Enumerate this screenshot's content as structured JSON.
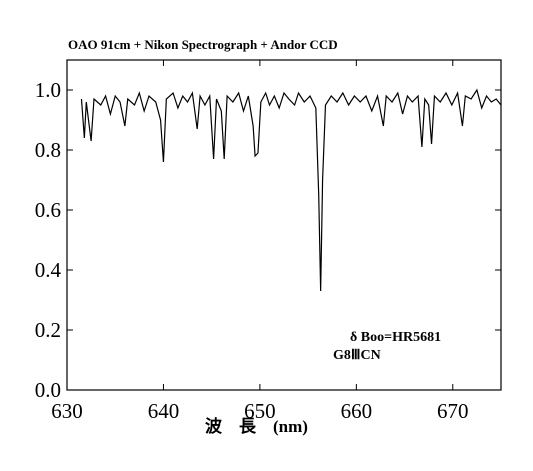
{
  "chart_data": {
    "type": "line",
    "title": "OAO 91cm + Nikon Spectrograph + Andor CCD",
    "x_label": "波　長　(nm)",
    "annotations": [
      "δ Boo=HR5681",
      "G8ⅢCN"
    ],
    "xlim": [
      630,
      675
    ],
    "ylim": [
      0,
      1.1
    ],
    "xticks": [
      630,
      640,
      650,
      660,
      670
    ],
    "yticks": [
      {
        "value": 0,
        "label": "0.0"
      },
      0.2,
      0.4,
      0.6,
      0.8,
      {
        "value": 1,
        "label": "1.0"
      }
    ],
    "color": "#000000",
    "x": [
      631.5,
      631.8,
      632.0,
      632.5,
      632.8,
      633.5,
      634.0,
      634.5,
      635.0,
      635.5,
      636.0,
      636.3,
      637.0,
      637.5,
      638.0,
      638.5,
      639.2,
      639.7,
      640.0,
      640.3,
      641.0,
      641.5,
      642.0,
      642.5,
      643.0,
      643.5,
      643.8,
      644.3,
      644.8,
      645.2,
      645.5,
      646.0,
      646.3,
      646.6,
      647.2,
      647.8,
      648.3,
      648.8,
      649.3,
      649.5,
      649.8,
      650.1,
      650.6,
      651.0,
      651.5,
      652.0,
      652.5,
      653.0,
      653.6,
      654.0,
      654.6,
      655.2,
      655.8,
      656.1,
      656.3,
      656.5,
      656.8,
      657.4,
      658.0,
      658.6,
      659.2,
      659.8,
      660.4,
      661.0,
      661.6,
      662.2,
      662.8,
      663.1,
      663.7,
      664.3,
      664.8,
      665.3,
      665.8,
      666.4,
      666.8,
      667.1,
      667.5,
      667.8,
      668.1,
      668.7,
      669.3,
      669.9,
      670.5,
      671.0,
      671.3,
      671.9,
      672.5,
      673.0,
      673.5,
      674.0,
      674.5,
      675.0
    ],
    "values": [
      0.97,
      0.84,
      0.96,
      0.83,
      0.97,
      0.95,
      0.98,
      0.92,
      0.98,
      0.96,
      0.88,
      0.97,
      0.95,
      0.99,
      0.93,
      0.98,
      0.96,
      0.9,
      0.76,
      0.97,
      0.99,
      0.94,
      0.98,
      0.96,
      0.99,
      0.87,
      0.98,
      0.95,
      0.98,
      0.77,
      0.97,
      0.93,
      0.77,
      0.98,
      0.96,
      0.99,
      0.93,
      0.98,
      0.88,
      0.78,
      0.79,
      0.96,
      0.99,
      0.95,
      0.98,
      0.94,
      0.99,
      0.97,
      0.95,
      0.99,
      0.96,
      0.98,
      0.94,
      0.65,
      0.33,
      0.7,
      0.95,
      0.98,
      0.96,
      0.99,
      0.95,
      0.98,
      0.96,
      0.98,
      0.93,
      0.98,
      0.88,
      0.98,
      0.96,
      0.99,
      0.92,
      0.98,
      0.96,
      0.98,
      0.81,
      0.97,
      0.95,
      0.82,
      0.98,
      0.96,
      0.99,
      0.95,
      0.99,
      0.88,
      0.98,
      0.97,
      1.0,
      0.94,
      0.98,
      0.96,
      0.97,
      0.95
    ]
  }
}
